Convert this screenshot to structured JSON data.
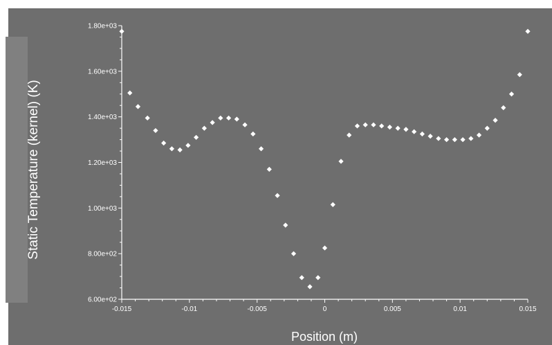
{
  "chart_data": {
    "type": "scatter",
    "title": "",
    "xlabel": "Position (m)",
    "ylabel": "Static Temperature (kernel) (K)",
    "xlim": [
      -0.015,
      0.015
    ],
    "ylim": [
      600,
      1800
    ],
    "x_ticks": [
      {
        "value": -0.015,
        "label": "-0.015"
      },
      {
        "value": -0.01,
        "label": "-0.01"
      },
      {
        "value": -0.005,
        "label": "-0.005"
      },
      {
        "value": 0,
        "label": "0"
      },
      {
        "value": 0.005,
        "label": "0.005"
      },
      {
        "value": 0.01,
        "label": "0.01"
      },
      {
        "value": 0.015,
        "label": "0.015"
      }
    ],
    "y_ticks": [
      {
        "value": 600,
        "label": "6.00e+02"
      },
      {
        "value": 800,
        "label": "8.00e+02"
      },
      {
        "value": 1000,
        "label": "1.00e+03"
      },
      {
        "value": 1200,
        "label": "1.20e+03"
      },
      {
        "value": 1400,
        "label": "1.40e+03"
      },
      {
        "value": 1600,
        "label": "1.60e+03"
      },
      {
        "value": 1800,
        "label": "1.80e+03"
      }
    ],
    "grid": false,
    "marker_color": "#ffffff",
    "background_color": "#6e6e6e",
    "series": [
      {
        "x": [
          -0.015,
          -0.0144,
          -0.0138,
          -0.0131,
          -0.0125,
          -0.0119,
          -0.0113,
          -0.0107,
          -0.0101,
          -0.0095,
          -0.0089,
          -0.0083,
          -0.0077,
          -0.0071,
          -0.0065,
          -0.0059,
          -0.0053,
          -0.0047,
          -0.0041,
          -0.0035,
          -0.0029,
          -0.0023,
          -0.0017,
          -0.0011,
          -0.0005,
          0.0,
          0.0006,
          0.0012,
          0.0018,
          0.0024,
          0.003,
          0.0036,
          0.0042,
          0.0048,
          0.0054,
          0.006,
          0.0066,
          0.0072,
          0.0078,
          0.0084,
          0.009,
          0.0096,
          0.0102,
          0.0108,
          0.0114,
          0.012,
          0.0126,
          0.0132,
          0.0138,
          0.0144,
          0.015
        ],
        "y": [
          1775,
          1505,
          1445,
          1395,
          1340,
          1285,
          1260,
          1255,
          1275,
          1310,
          1350,
          1375,
          1395,
          1395,
          1390,
          1365,
          1325,
          1260,
          1170,
          1055,
          925,
          800,
          695,
          655,
          695,
          825,
          1015,
          1205,
          1320,
          1360,
          1365,
          1365,
          1360,
          1355,
          1350,
          1345,
          1335,
          1325,
          1315,
          1305,
          1300,
          1300,
          1300,
          1305,
          1320,
          1350,
          1385,
          1440,
          1500,
          1585,
          1775
        ]
      }
    ]
  }
}
